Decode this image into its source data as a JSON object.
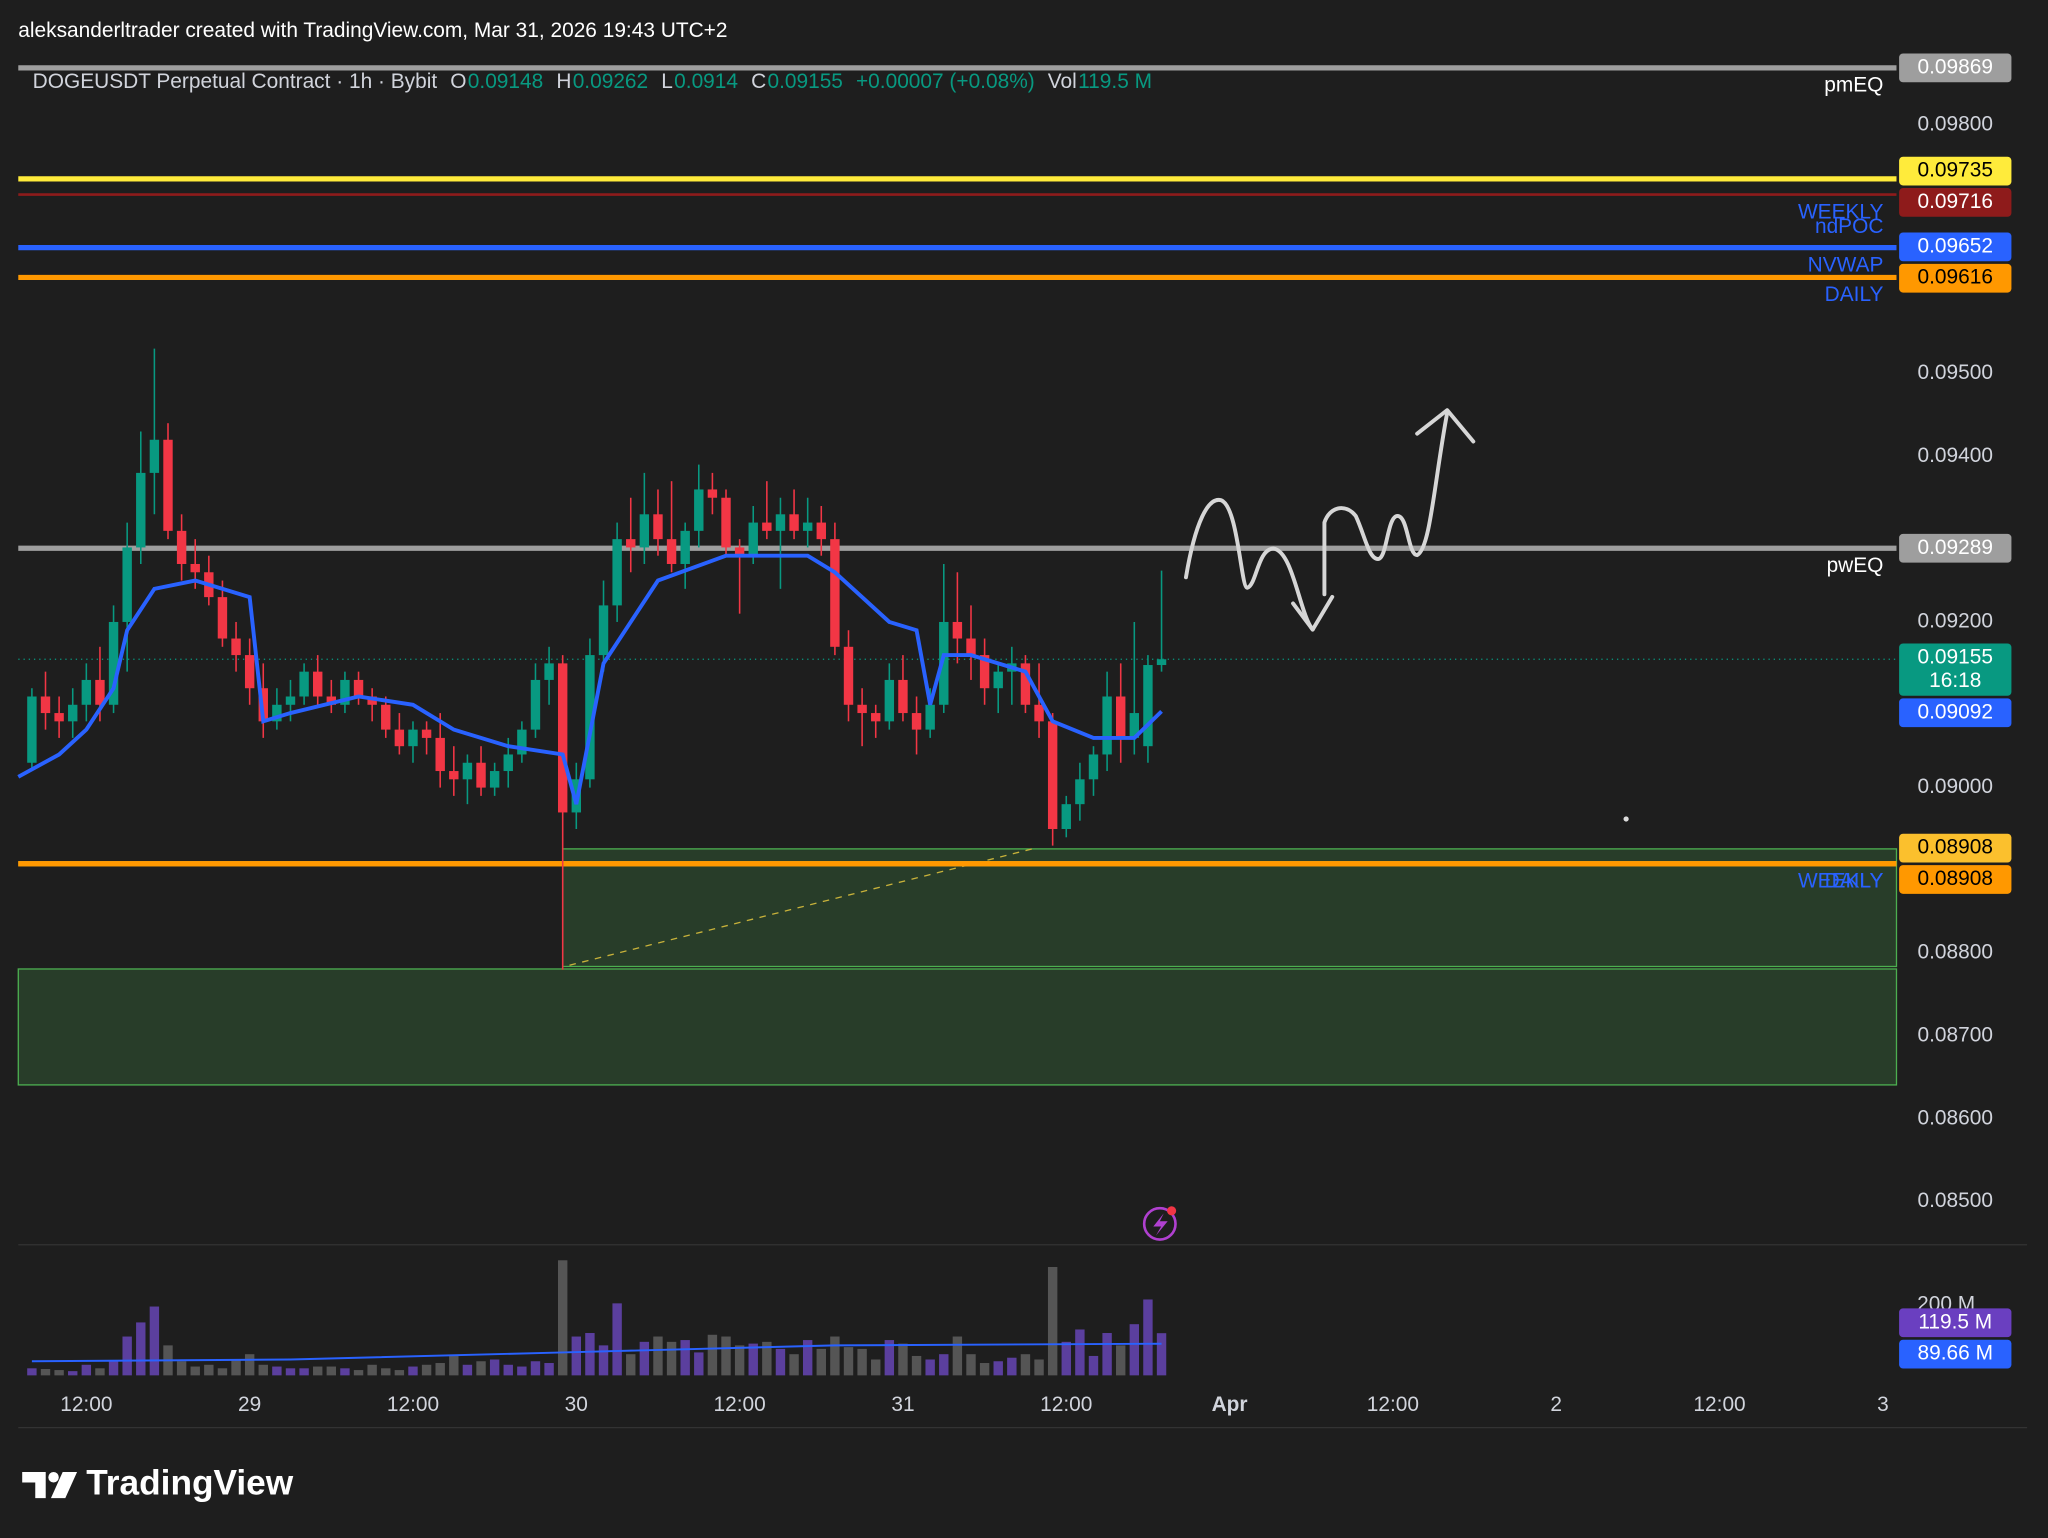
{
  "header": {
    "watermark": "aleksanderltrader created with TradingView.com, Mar 31, 2026 19:43 UTC+2",
    "brand": "TradingView"
  },
  "chart_data": {
    "type": "candlestick",
    "legend": {
      "symbol": "DOGEUSDT Perpetual Contract · 1h · Bybit",
      "fields": [
        {
          "label": "O",
          "value": 0.09148
        },
        {
          "label": "H",
          "value": 0.09262
        },
        {
          "label": "L",
          "value": 0.0914
        },
        {
          "label": "C",
          "value": 0.09155
        }
      ],
      "change": "+0.00007 (+0.08%)",
      "vol_label": "Vol",
      "vol": "119.5 M"
    },
    "xlim": [
      0,
      138
    ],
    "xticks": [
      {
        "value": 5,
        "label": "12:00"
      },
      {
        "value": 17,
        "label": "29"
      },
      {
        "value": 29,
        "label": "12:00"
      },
      {
        "value": 41,
        "label": "30"
      },
      {
        "value": 53,
        "label": "12:00"
      },
      {
        "value": 65,
        "label": "31"
      },
      {
        "value": 77,
        "label": "12:00"
      },
      {
        "value": 89,
        "label": "Apr",
        "bold": true
      },
      {
        "value": 101,
        "label": "12:00"
      },
      {
        "value": 113,
        "label": "2"
      },
      {
        "value": 125,
        "label": "12:00"
      },
      {
        "value": 137,
        "label": "3"
      }
    ],
    "ylim": [
      0.08448,
      0.0988
    ],
    "yticks": [
      {
        "value": 0.098,
        "label": "0.09800"
      },
      {
        "value": 0.095,
        "label": "0.09500"
      },
      {
        "value": 0.094,
        "label": "0.09400"
      },
      {
        "value": 0.092,
        "label": "0.09200"
      },
      {
        "value": 0.09,
        "label": "0.09000"
      },
      {
        "value": 0.088,
        "label": "0.08800"
      },
      {
        "value": 0.087,
        "label": "0.08700"
      },
      {
        "value": 0.086,
        "label": "0.08600"
      },
      {
        "value": 0.085,
        "label": "0.08500"
      }
    ],
    "up_color": "#089981",
    "down_color": "#f23645",
    "candles_x_start": 1,
    "candles": [
      [
        0.0903,
        0.0912,
        0.0902,
        0.0911
      ],
      [
        0.0911,
        0.0914,
        0.0907,
        0.0909
      ],
      [
        0.0909,
        0.0911,
        0.0906,
        0.0908
      ],
      [
        0.0908,
        0.0912,
        0.0906,
        0.091
      ],
      [
        0.091,
        0.0915,
        0.0908,
        0.0913
      ],
      [
        0.0913,
        0.0917,
        0.0908,
        0.091
      ],
      [
        0.091,
        0.0922,
        0.0909,
        0.092
      ],
      [
        0.092,
        0.0932,
        0.0914,
        0.0929
      ],
      [
        0.0929,
        0.0943,
        0.0927,
        0.0938
      ],
      [
        0.0938,
        0.0953,
        0.0933,
        0.0942
      ],
      [
        0.0942,
        0.0944,
        0.093,
        0.0931
      ],
      [
        0.0931,
        0.0933,
        0.0925,
        0.0927
      ],
      [
        0.0927,
        0.093,
        0.0924,
        0.0926
      ],
      [
        0.0926,
        0.0928,
        0.0922,
        0.0923
      ],
      [
        0.0923,
        0.0925,
        0.0917,
        0.0918
      ],
      [
        0.0918,
        0.092,
        0.0914,
        0.0916
      ],
      [
        0.0916,
        0.0918,
        0.091,
        0.0912
      ],
      [
        0.0912,
        0.0915,
        0.0906,
        0.0908
      ],
      [
        0.0908,
        0.0912,
        0.0907,
        0.091
      ],
      [
        0.091,
        0.0913,
        0.0908,
        0.0911
      ],
      [
        0.0911,
        0.0915,
        0.091,
        0.0914
      ],
      [
        0.0914,
        0.0916,
        0.091,
        0.0911
      ],
      [
        0.0911,
        0.0913,
        0.0909,
        0.091
      ],
      [
        0.091,
        0.0914,
        0.0909,
        0.0913
      ],
      [
        0.0913,
        0.0914,
        0.091,
        0.0911
      ],
      [
        0.0911,
        0.0912,
        0.0908,
        0.091
      ],
      [
        0.091,
        0.0911,
        0.0906,
        0.0907
      ],
      [
        0.0907,
        0.0909,
        0.0904,
        0.0905
      ],
      [
        0.0905,
        0.0908,
        0.0903,
        0.0907
      ],
      [
        0.0907,
        0.0908,
        0.0904,
        0.0906
      ],
      [
        0.0906,
        0.0909,
        0.09,
        0.0902
      ],
      [
        0.0902,
        0.0905,
        0.0899,
        0.0901
      ],
      [
        0.0901,
        0.0904,
        0.0898,
        0.0903
      ],
      [
        0.0903,
        0.0905,
        0.0899,
        0.09
      ],
      [
        0.09,
        0.0903,
        0.0899,
        0.0902
      ],
      [
        0.0902,
        0.0906,
        0.09,
        0.0904
      ],
      [
        0.0904,
        0.0908,
        0.0903,
        0.0907
      ],
      [
        0.0907,
        0.0915,
        0.0906,
        0.0913
      ],
      [
        0.0913,
        0.0917,
        0.091,
        0.0915
      ],
      [
        0.0915,
        0.0916,
        0.0878,
        0.0897
      ],
      [
        0.0897,
        0.0903,
        0.0895,
        0.0901
      ],
      [
        0.0901,
        0.0918,
        0.09,
        0.0916
      ],
      [
        0.0916,
        0.0925,
        0.0914,
        0.0922
      ],
      [
        0.0922,
        0.0932,
        0.092,
        0.093
      ],
      [
        0.093,
        0.0935,
        0.0926,
        0.0929
      ],
      [
        0.0929,
        0.0938,
        0.0927,
        0.0933
      ],
      [
        0.0933,
        0.0936,
        0.0928,
        0.093
      ],
      [
        0.093,
        0.0937,
        0.0926,
        0.0927
      ],
      [
        0.0927,
        0.0932,
        0.0924,
        0.0931
      ],
      [
        0.0931,
        0.0939,
        0.0929,
        0.0936
      ],
      [
        0.0936,
        0.0938,
        0.0933,
        0.0935
      ],
      [
        0.0935,
        0.0936,
        0.0928,
        0.0929
      ],
      [
        0.0929,
        0.093,
        0.0921,
        0.0928
      ],
      [
        0.0928,
        0.0934,
        0.0927,
        0.0932
      ],
      [
        0.0932,
        0.0937,
        0.093,
        0.0931
      ],
      [
        0.0931,
        0.0935,
        0.0924,
        0.0933
      ],
      [
        0.0933,
        0.0936,
        0.093,
        0.0931
      ],
      [
        0.0931,
        0.0935,
        0.0929,
        0.0932
      ],
      [
        0.0932,
        0.0934,
        0.0928,
        0.093
      ],
      [
        0.093,
        0.0932,
        0.0916,
        0.0917
      ],
      [
        0.0917,
        0.0919,
        0.0908,
        0.091
      ],
      [
        0.091,
        0.0912,
        0.0905,
        0.0909
      ],
      [
        0.0909,
        0.091,
        0.0906,
        0.0908
      ],
      [
        0.0908,
        0.0915,
        0.0907,
        0.0913
      ],
      [
        0.0913,
        0.0916,
        0.0908,
        0.0909
      ],
      [
        0.0909,
        0.0911,
        0.0904,
        0.0907
      ],
      [
        0.0907,
        0.0912,
        0.0906,
        0.091
      ],
      [
        0.091,
        0.0927,
        0.0909,
        0.092
      ],
      [
        0.092,
        0.0926,
        0.0915,
        0.0918
      ],
      [
        0.0918,
        0.0922,
        0.0913,
        0.0916
      ],
      [
        0.0916,
        0.0918,
        0.091,
        0.0912
      ],
      [
        0.0912,
        0.0915,
        0.0909,
        0.0914
      ],
      [
        0.0914,
        0.0917,
        0.091,
        0.0915
      ],
      [
        0.0915,
        0.0916,
        0.0909,
        0.091
      ],
      [
        0.091,
        0.0915,
        0.0906,
        0.0908
      ],
      [
        0.0908,
        0.0909,
        0.0893,
        0.0895
      ],
      [
        0.0895,
        0.0899,
        0.0894,
        0.0898
      ],
      [
        0.0898,
        0.0903,
        0.0896,
        0.0901
      ],
      [
        0.0901,
        0.0905,
        0.0899,
        0.0904
      ],
      [
        0.0904,
        0.0914,
        0.0902,
        0.0911
      ],
      [
        0.0911,
        0.0915,
        0.0903,
        0.0906
      ],
      [
        0.0906,
        0.092,
        0.0904,
        0.0909
      ],
      [
        0.0905,
        0.0916,
        0.0903,
        0.09148
      ],
      [
        0.09148,
        0.09262,
        0.0914,
        0.09155
      ]
    ],
    "vwap": {
      "color": "#2962ff",
      "x": [
        0,
        3,
        5,
        7,
        8,
        10,
        13,
        17,
        18,
        20,
        25,
        29,
        32,
        36,
        40,
        41,
        43,
        45,
        47,
        52,
        58,
        60,
        64,
        66,
        67,
        68,
        70,
        74,
        76,
        79,
        82,
        84
      ],
      "values": [
        0.09013,
        0.0904,
        0.0907,
        0.0912,
        0.0919,
        0.0924,
        0.0925,
        0.0923,
        0.0908,
        0.0909,
        0.0911,
        0.091,
        0.0907,
        0.0905,
        0.0904,
        0.0898,
        0.0915,
        0.092,
        0.0925,
        0.0928,
        0.0928,
        0.0926,
        0.092,
        0.0919,
        0.091,
        0.0916,
        0.0916,
        0.0914,
        0.0908,
        0.0906,
        0.0906,
        0.09092
      ]
    },
    "current": {
      "value": 0.09155,
      "countdown": "16:18",
      "color": "#089981"
    },
    "levels": [
      {
        "value": 0.09869,
        "color": "#9e9e9e",
        "text_color": "#ffffff",
        "labels": [
          "pmEQ"
        ],
        "label_color": "#ffffff"
      },
      {
        "value": 0.09735,
        "color": "#ffeb3b",
        "text_color": "#000000"
      },
      {
        "value": 0.09716,
        "color": "#8e1b1b",
        "text_color": "#ffffff",
        "labels": [
          "WEEKLY",
          "ndPOC"
        ],
        "label_color": "#2962ff"
      },
      {
        "value": 0.09652,
        "color": "#2962ff",
        "text_color": "#ffffff",
        "labels": [
          "NVWAP"
        ],
        "label_color": "#2962ff"
      },
      {
        "value": 0.09616,
        "color": "#ff9800",
        "text_color": "#000000",
        "labels": [
          "DAILY"
        ],
        "label_color": "#2962ff"
      },
      {
        "value": 0.09289,
        "color": "#9e9e9e",
        "text_color": "#ffffff",
        "labels": [
          "pwEQ"
        ],
        "label_color": "#ffffff"
      },
      {
        "value": 0.08908,
        "color": "#fbc02d",
        "text_color": "#000000",
        "labels": [
          "WEEKLY"
        ],
        "label_color": "#2962ff"
      },
      {
        "value": 0.08908,
        "color": "#ff9800",
        "text_color": "#000000",
        "labels": [
          "DAILY"
        ],
        "label_color": "#2962ff"
      }
    ],
    "zones": [
      {
        "from_x": 40,
        "top": 0.08926,
        "bottom": 0.08784
      },
      {
        "from_x": 0,
        "top": 0.08781,
        "bottom": 0.08641
      }
    ],
    "volume_ylim": [
      0,
      370
    ],
    "volume_ticks": [
      {
        "value": 200,
        "label": "200 M"
      }
    ],
    "volume_up_color": "#5b3f9e",
    "volume_down_color": "#555555",
    "volume": [
      20,
      18,
      15,
      12,
      30,
      20,
      40,
      110,
      150,
      195,
      85,
      40,
      25,
      30,
      20,
      45,
      60,
      30,
      25,
      20,
      20,
      25,
      25,
      20,
      15,
      30,
      20,
      15,
      25,
      30,
      35,
      55,
      30,
      40,
      45,
      30,
      25,
      40,
      35,
      326,
      110,
      120,
      85,
      204,
      60,
      95,
      110,
      95,
      100,
      65,
      115,
      110,
      85,
      90,
      95,
      75,
      60,
      100,
      75,
      110,
      80,
      75,
      45,
      100,
      90,
      55,
      45,
      60,
      110,
      60,
      35,
      40,
      50,
      60,
      45,
      307,
      95,
      130,
      55,
      120,
      85,
      145,
      215,
      119.5
    ],
    "volume_last_label": "119.5 M",
    "volume_last_color": "#6a3fc0",
    "volume_ma": {
      "color": "#2962ff",
      "x": [
        1,
        20,
        40,
        60,
        84
      ],
      "values": [
        40,
        45,
        65,
        85,
        89.66
      ],
      "last_label": "89.66 M"
    }
  }
}
